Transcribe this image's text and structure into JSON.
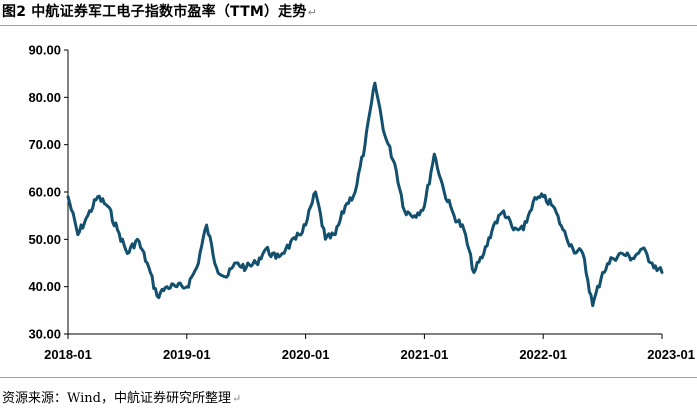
{
  "title": "图2 中航证券军工电子指数市盈率（TTM）走势",
  "source": "资源来源：Wind，中航证券研究所整理",
  "colors": {
    "series": "#12506e",
    "axis": "#000000",
    "rule": "#9e9e9e"
  },
  "chart_data": {
    "type": "line",
    "title": "图2 中航证券军工电子指数市盈率（TTM）走势",
    "xlabel": "",
    "ylabel": "",
    "ylim": [
      30,
      90
    ],
    "yticks": [
      30,
      40,
      50,
      60,
      70,
      80,
      90
    ],
    "ytick_labels": [
      "30.00",
      "40.00",
      "50.00",
      "60.00",
      "70.00",
      "80.00",
      "90.00"
    ],
    "xlim": [
      "2018-01",
      "2023-01"
    ],
    "xticks": [
      "2018-01",
      "2019-01",
      "2020-01",
      "2021-01",
      "2022-01",
      "2023-01"
    ],
    "grid": false,
    "legend": "none",
    "series": [
      {
        "name": "",
        "x": [
          "2018-01",
          "2018-02",
          "2018-03",
          "2018-04",
          "2018-05",
          "2018-06",
          "2018-07",
          "2018-08",
          "2018-09",
          "2018-10",
          "2018-11",
          "2018-12",
          "2019-01",
          "2019-02",
          "2019-03",
          "2019-04",
          "2019-05",
          "2019-06",
          "2019-07",
          "2019-08",
          "2019-09",
          "2019-10",
          "2019-11",
          "2019-12",
          "2020-01",
          "2020-02",
          "2020-03",
          "2020-04",
          "2020-05",
          "2020-06",
          "2020-07",
          "2020-08",
          "2020-09",
          "2020-10",
          "2020-11",
          "2020-12",
          "2021-01",
          "2021-02",
          "2021-03",
          "2021-04",
          "2021-05",
          "2021-06",
          "2021-07",
          "2021-08",
          "2021-09",
          "2021-10",
          "2021-11",
          "2021-12",
          "2022-01",
          "2022-02",
          "2022-03",
          "2022-04",
          "2022-05",
          "2022-06",
          "2022-07",
          "2022-08",
          "2022-09",
          "2022-10",
          "2022-11",
          "2022-12",
          "2023-01"
        ],
        "values": [
          59,
          51,
          55,
          59,
          57,
          52,
          47,
          50,
          45,
          38,
          40,
          40,
          40,
          44,
          53,
          44,
          42,
          45,
          44,
          45,
          48,
          46,
          48,
          50,
          53,
          60,
          50,
          51,
          57,
          60,
          70,
          83,
          72,
          66,
          56,
          55,
          57,
          68,
          60,
          55,
          52,
          43,
          47,
          53,
          56,
          52,
          52,
          58,
          59,
          57,
          52,
          48,
          47,
          36,
          43,
          46,
          47,
          46,
          48,
          45,
          43
        ]
      }
    ]
  }
}
